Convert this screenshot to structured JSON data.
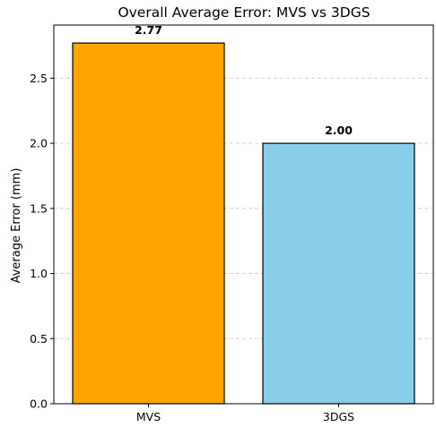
{
  "chart_data": {
    "type": "bar",
    "title": "Overall Average Error: MVS vs 3DGS",
    "xlabel": "",
    "ylabel": "Average Error (mm)",
    "categories": [
      "MVS",
      "3DGS"
    ],
    "values": [
      2.77,
      2.0
    ],
    "value_labels": [
      "2.77",
      "2.00"
    ],
    "bar_colors": [
      "#FFA500",
      "#87CEEB"
    ],
    "ylim": [
      0,
      2.908
    ],
    "yticks": [
      0.0,
      0.5,
      1.0,
      1.5,
      2.0,
      2.5
    ],
    "ytick_labels": [
      "0.0",
      "0.5",
      "1.0",
      "1.5",
      "2.0",
      "2.5"
    ],
    "grid": "y-dashed",
    "legend": "none"
  }
}
